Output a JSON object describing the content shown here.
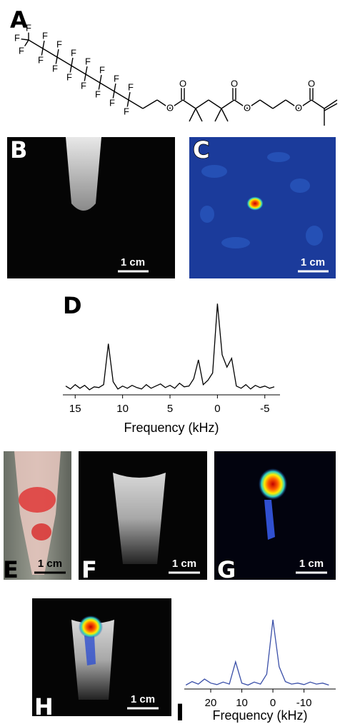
{
  "panel_labels": [
    "A",
    "B",
    "C",
    "D",
    "E",
    "F",
    "G",
    "H",
    "I"
  ],
  "molecule": {
    "atoms": [
      "F",
      "F",
      "F",
      "F",
      "F",
      "F",
      "F",
      "F",
      "F",
      "F",
      "F",
      "F",
      "F",
      "F",
      "F",
      "F",
      "F",
      "O",
      "O",
      "O",
      "O",
      "O",
      "O"
    ]
  },
  "scale_bar_labels": [
    "1 cm",
    "1 cm",
    "1 cm",
    "1 cm",
    "1 cm",
    "1 cm"
  ],
  "chart_data": [
    {
      "type": "line",
      "x_label": "Frequency (kHz)",
      "color": "#000000",
      "x": [
        16,
        15.5,
        15,
        14.5,
        14,
        13.5,
        13,
        12.5,
        12,
        11.5,
        11,
        10.5,
        10,
        9.5,
        9,
        8.5,
        8,
        7.5,
        7,
        6.5,
        6,
        5.5,
        5,
        4.5,
        4,
        3.5,
        3,
        2.5,
        2,
        1.5,
        1,
        0.5,
        0,
        -0.5,
        -1,
        -1.5,
        -2,
        -2.5,
        -3,
        -3.5,
        -4,
        -4.5,
        -5,
        -5.5,
        -6
      ],
      "values": [
        12,
        8,
        14,
        9,
        13,
        7,
        11,
        10,
        14,
        70,
        18,
        8,
        12,
        9,
        13,
        10,
        8,
        14,
        9,
        12,
        15,
        10,
        13,
        9,
        16,
        11,
        12,
        22,
        48,
        14,
        20,
        30,
        125,
        55,
        38,
        50,
        12,
        9,
        14,
        8,
        13,
        10,
        12,
        9,
        11
      ],
      "xlim": [
        16.3,
        -6.6
      ],
      "ylim": [
        0,
        140
      ],
      "xticks": [
        15,
        10,
        5,
        0,
        -5
      ]
    },
    {
      "type": "line",
      "x_label": "Frequency (kHz)",
      "color": "#3a4fa8",
      "x": [
        28,
        26,
        24,
        22,
        20,
        18,
        16,
        14,
        12,
        10,
        8,
        6,
        4,
        2,
        0,
        -2,
        -4,
        -6,
        -8,
        -10,
        -12,
        -14,
        -16,
        -18
      ],
      "values": [
        8,
        15,
        10,
        20,
        12,
        9,
        14,
        10,
        55,
        12,
        8,
        14,
        10,
        30,
        140,
        45,
        15,
        10,
        12,
        9,
        14,
        10,
        12,
        8
      ],
      "xlim": [
        28.5,
        -20.2
      ],
      "ylim": [
        0,
        140
      ],
      "xticks": [
        20,
        10,
        0,
        -10
      ]
    }
  ]
}
